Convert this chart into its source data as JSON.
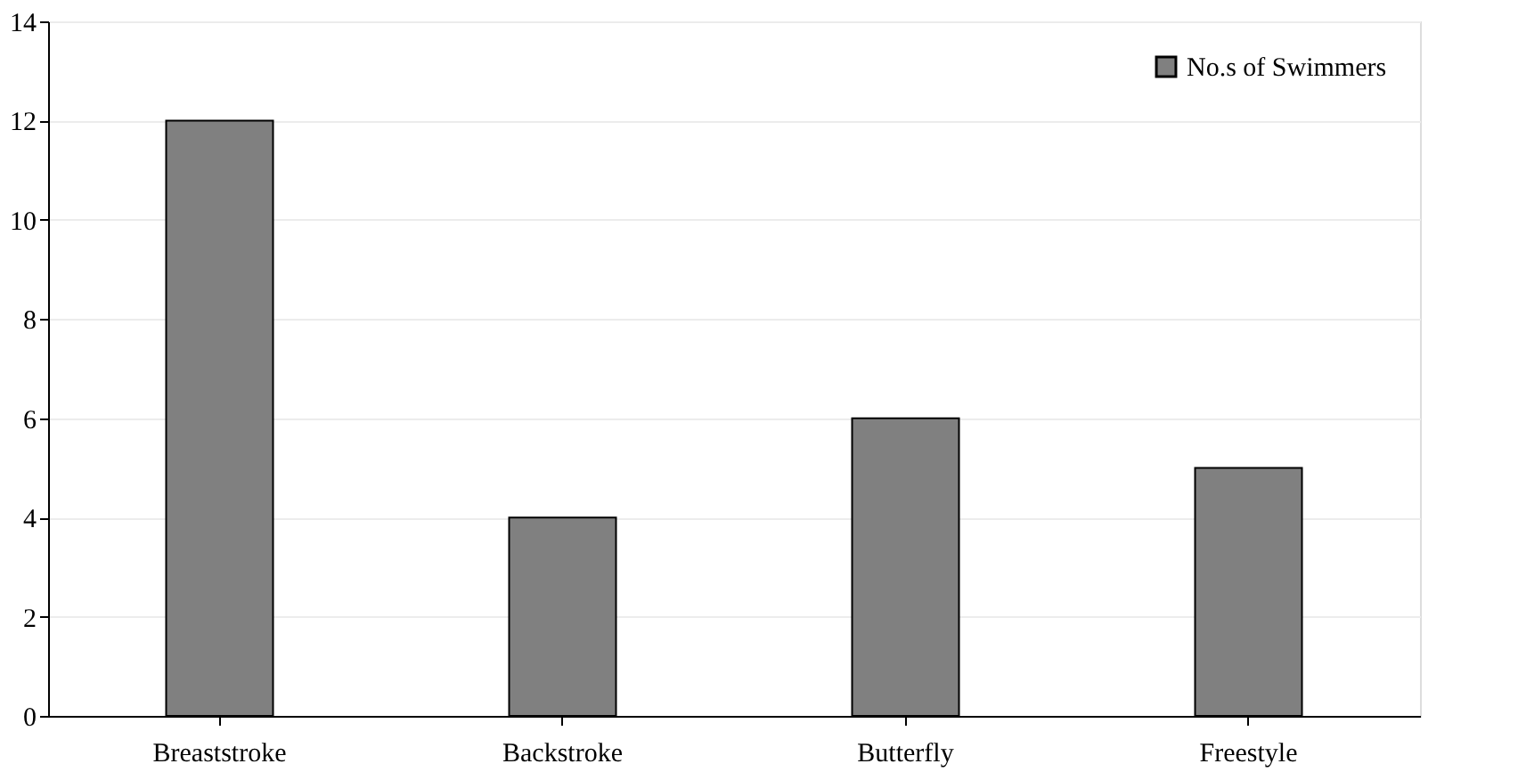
{
  "chart_data": {
    "type": "bar",
    "categories": [
      "Breaststroke",
      "Backstroke",
      "Butterfly",
      "Freestyle"
    ],
    "series": [
      {
        "name": "No.s of Swimmers",
        "color": "#808080",
        "values": [
          12,
          4,
          6,
          5
        ]
      }
    ],
    "ylim": [
      0,
      14
    ],
    "yticks": [
      0,
      2,
      4,
      6,
      8,
      10,
      12,
      14
    ],
    "grid": "y",
    "legend": "top right"
  }
}
